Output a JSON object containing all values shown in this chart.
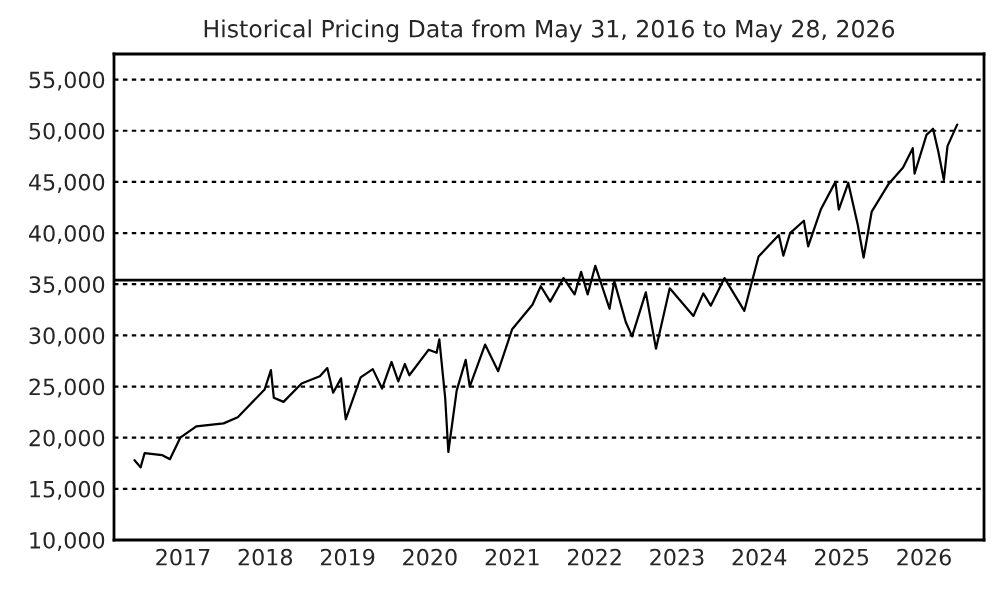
{
  "chart_data": {
    "type": "line",
    "title": "Historical Pricing Data from May 31, 2016 to May 28, 2026",
    "x": [
      "2016-05-31",
      "2016-06-27",
      "2016-07-15",
      "2016-09-30",
      "2016-11-04",
      "2016-12-20",
      "2017-03-01",
      "2017-06-30",
      "2017-09-01",
      "2017-12-29",
      "2018-01-26",
      "2018-02-08",
      "2018-03-23",
      "2018-06-11",
      "2018-08-31",
      "2018-10-03",
      "2018-10-29",
      "2018-12-03",
      "2018-12-24",
      "2019-02-28",
      "2019-04-23",
      "2019-06-03",
      "2019-07-15",
      "2019-08-14",
      "2019-09-12",
      "2019-10-02",
      "2019-12-27",
      "2020-01-31",
      "2020-02-12",
      "2020-03-09",
      "2020-03-23",
      "2020-04-29",
      "2020-06-08",
      "2020-06-26",
      "2020-09-02",
      "2020-10-30",
      "2020-12-31",
      "2021-03-31",
      "2021-05-07",
      "2021-06-18",
      "2021-08-16",
      "2021-10-04",
      "2021-11-02",
      "2021-12-01",
      "2022-01-04",
      "2022-03-08",
      "2022-03-29",
      "2022-05-19",
      "2022-06-16",
      "2022-08-16",
      "2022-09-30",
      "2022-11-30",
      "2023-03-15",
      "2023-04-28",
      "2023-05-31",
      "2023-07-31",
      "2023-10-27",
      "2023-12-29",
      "2024-03-28",
      "2024-04-17",
      "2024-05-17",
      "2024-07-17",
      "2024-08-05",
      "2024-09-30",
      "2024-12-04",
      "2024-12-19",
      "2025-01-30",
      "2025-03-13",
      "2025-04-08",
      "2025-05-14",
      "2025-07-28",
      "2025-09-30",
      "2025-11-12",
      "2025-11-20",
      "2026-01-12",
      "2026-02-10",
      "2026-03-05",
      "2026-03-30",
      "2026-04-15",
      "2026-05-28"
    ],
    "series": [
      {
        "color": "#000000",
        "values": [
          17800,
          17100,
          18500,
          18300,
          17900,
          20000,
          21100,
          21400,
          22000,
          24700,
          26600,
          23900,
          23500,
          25300,
          26000,
          26800,
          24400,
          25800,
          21800,
          25900,
          26700,
          24800,
          27400,
          25500,
          27200,
          26100,
          28600,
          28300,
          29600,
          23900,
          18600,
          24600,
          27600,
          25000,
          29100,
          26500,
          30600,
          33000,
          34800,
          33300,
          35600,
          34000,
          36200,
          34000,
          36800,
          32600,
          35300,
          31300,
          29900,
          34200,
          28700,
          34600,
          31900,
          34100,
          32900,
          35600,
          32400,
          37700,
          39800,
          37800,
          40000,
          41200,
          38700,
          42300,
          45000,
          42300,
          44900,
          40800,
          37600,
          42100,
          44800,
          46400,
          48300,
          45800,
          49600,
          50200,
          48000,
          45200,
          48500,
          50600
        ]
      }
    ],
    "xlim": [
      "2016-03-01",
      "2026-09-24"
    ],
    "xticks": [
      {
        "value": "2017-01-01",
        "label": "2017"
      },
      {
        "value": "2018-01-01",
        "label": "2018"
      },
      {
        "value": "2019-01-01",
        "label": "2019"
      },
      {
        "value": "2020-01-01",
        "label": "2020"
      },
      {
        "value": "2021-01-01",
        "label": "2021"
      },
      {
        "value": "2022-01-01",
        "label": "2022"
      },
      {
        "value": "2023-01-01",
        "label": "2023"
      },
      {
        "value": "2024-01-01",
        "label": "2024"
      },
      {
        "value": "2025-01-01",
        "label": "2025"
      },
      {
        "value": "2026-01-01",
        "label": "2026"
      }
    ],
    "ylim": [
      10000,
      57500
    ],
    "yticks": [
      {
        "value": 10000,
        "label": "10,000"
      },
      {
        "value": 15000,
        "label": "15,000"
      },
      {
        "value": 20000,
        "label": "20,000"
      },
      {
        "value": 25000,
        "label": "25,000"
      },
      {
        "value": 30000,
        "label": "30,000"
      },
      {
        "value": 35000,
        "label": "35,000"
      },
      {
        "value": 40000,
        "label": "40,000"
      },
      {
        "value": 45000,
        "label": "45,000"
      },
      {
        "value": 50000,
        "label": "50,000"
      },
      {
        "value": 55000,
        "label": "55,000"
      }
    ],
    "ref_lines": [
      {
        "axis": "y",
        "value": 35400,
        "color": "#000000",
        "line_style": "solid"
      }
    ],
    "grid": "y",
    "marker": "none",
    "line_style": "solid"
  }
}
